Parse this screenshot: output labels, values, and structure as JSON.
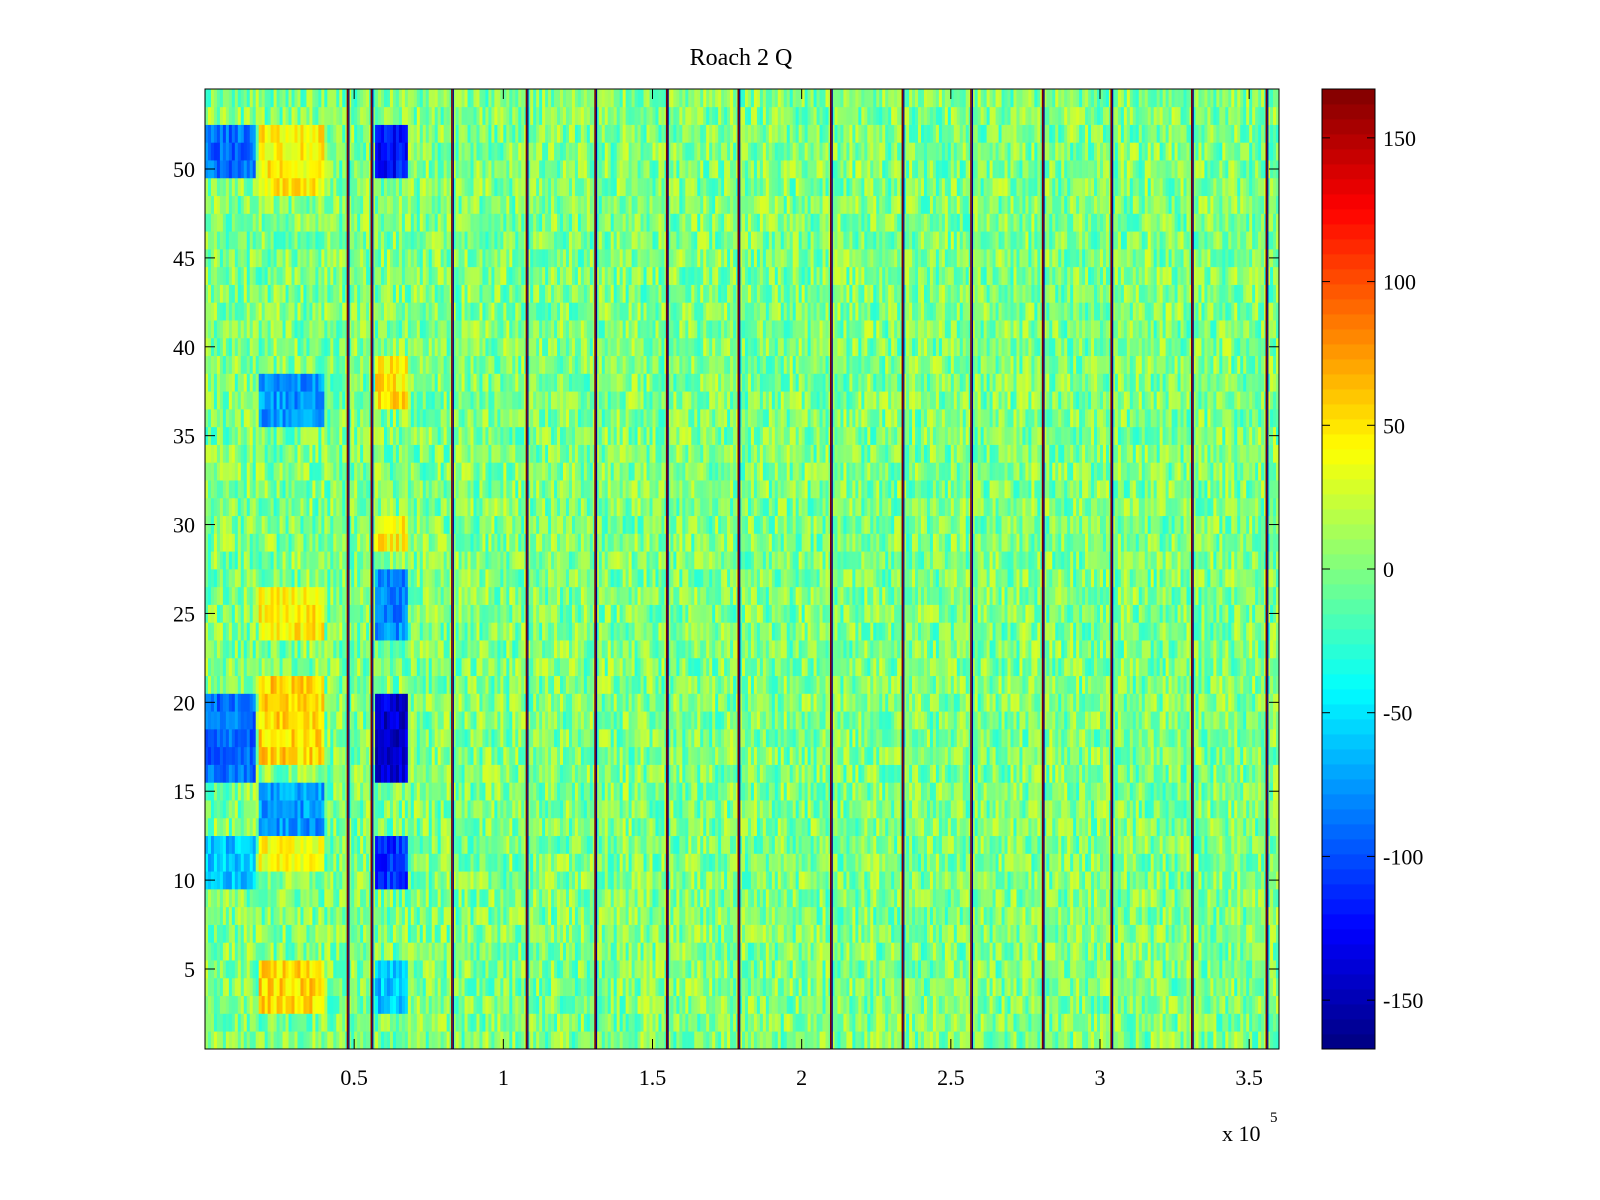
{
  "chart_data": {
    "type": "heatmap",
    "title": "Roach 2 Q",
    "xlabel": "",
    "ylabel": "",
    "x_exponent_label": "x 10",
    "x_exponent": "5",
    "xlim": [
      0,
      360000
    ],
    "ylim": [
      0.5,
      54.5
    ],
    "rows": 54,
    "columns": 360,
    "x_ticks": [
      50000,
      100000,
      150000,
      200000,
      250000,
      300000,
      350000
    ],
    "x_tick_labels": [
      "0.5",
      "1",
      "1.5",
      "2",
      "2.5",
      "3",
      "3.5"
    ],
    "y_ticks": [
      5,
      10,
      15,
      20,
      25,
      30,
      35,
      40,
      45,
      50
    ],
    "y_tick_labels": [
      "5",
      "10",
      "15",
      "20",
      "25",
      "30",
      "35",
      "40",
      "45",
      "50"
    ],
    "colorbar": {
      "colormap": "jet",
      "clim": [
        -167,
        167
      ],
      "ticks": [
        150,
        100,
        50,
        0,
        -50,
        -100,
        -150
      ],
      "tick_labels": [
        "150",
        "100",
        "50",
        "0",
        "-50",
        "-100",
        "-150"
      ]
    },
    "background_level": 0,
    "noise_amplitude": 30,
    "vertical_stripes_x": [
      48000,
      56000,
      83000,
      108000,
      131000,
      155000,
      179000,
      210000,
      234000,
      257000,
      281000,
      304000,
      331000,
      356000
    ],
    "stripe_colors": [
      "#7f0000",
      "#00008f"
    ],
    "hot_blocks": [
      {
        "x_range": [
          18000,
          40000
        ],
        "rows": [
          49,
          52
        ],
        "value": 45
      },
      {
        "x_range": [
          18000,
          40000
        ],
        "rows": [
          17,
          21
        ],
        "value": 55
      },
      {
        "x_range": [
          18000,
          40000
        ],
        "rows": [
          24,
          26
        ],
        "value": 45
      },
      {
        "x_range": [
          18000,
          40000
        ],
        "rows": [
          11,
          13
        ],
        "value": 40
      },
      {
        "x_range": [
          18000,
          40000
        ],
        "rows": [
          3,
          5
        ],
        "value": 55
      },
      {
        "x_range": [
          57000,
          68000
        ],
        "rows": [
          37,
          39
        ],
        "value": 50
      },
      {
        "x_range": [
          57000,
          68000
        ],
        "rows": [
          29,
          30
        ],
        "value": 45
      }
    ],
    "cold_blocks": [
      {
        "x_range": [
          0,
          17000
        ],
        "rows": [
          50,
          52
        ],
        "value": -90
      },
      {
        "x_range": [
          0,
          17000
        ],
        "rows": [
          16,
          20
        ],
        "value": -90
      },
      {
        "x_range": [
          0,
          17000
        ],
        "rows": [
          10,
          12
        ],
        "value": -60
      },
      {
        "x_range": [
          18000,
          40000
        ],
        "rows": [
          36,
          38
        ],
        "value": -75
      },
      {
        "x_range": [
          18000,
          40000
        ],
        "rows": [
          13,
          15
        ],
        "value": -75
      },
      {
        "x_range": [
          57000,
          68000
        ],
        "rows": [
          50,
          52
        ],
        "value": -120
      },
      {
        "x_range": [
          57000,
          68000
        ],
        "rows": [
          16,
          20
        ],
        "value": -140
      },
      {
        "x_range": [
          57000,
          68000
        ],
        "rows": [
          24,
          27
        ],
        "value": -80
      },
      {
        "x_range": [
          57000,
          68000
        ],
        "rows": [
          10,
          12
        ],
        "value": -110
      },
      {
        "x_range": [
          57000,
          68000
        ],
        "rows": [
          3,
          5
        ],
        "value": -60
      }
    ]
  }
}
